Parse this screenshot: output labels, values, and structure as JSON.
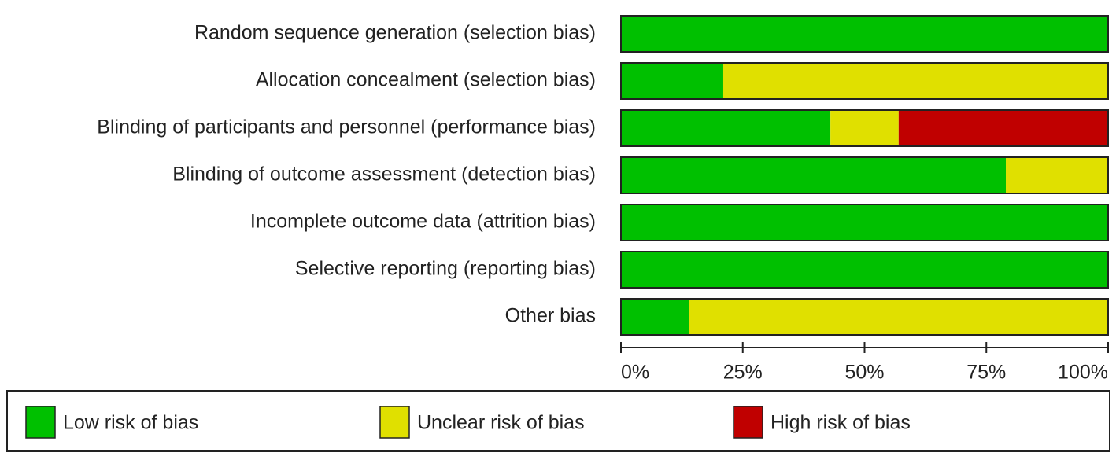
{
  "chart_data": {
    "type": "stacked-bar-horizontal",
    "categories": [
      "Random sequence generation (selection bias)",
      "Allocation concealment (selection bias)",
      "Blinding of participants and personnel (performance bias)",
      "Blinding of outcome assessment (detection bias)",
      "Incomplete outcome data (attrition bias)",
      "Selective reporting (reporting bias)",
      "Other bias"
    ],
    "series": [
      {
        "name": "Low risk of bias",
        "color": "#00c000",
        "values": [
          100,
          21,
          43,
          79,
          100,
          100,
          14
        ]
      },
      {
        "name": "Unclear risk of bias",
        "color": "#e0e000",
        "values": [
          0,
          79,
          14,
          21,
          0,
          0,
          86
        ]
      },
      {
        "name": "High risk of bias",
        "color": "#c00000",
        "values": [
          0,
          0,
          43,
          0,
          0,
          0,
          0
        ]
      }
    ],
    "xlim": [
      0,
      100
    ],
    "xticks": [
      {
        "value": 0,
        "label": "0%"
      },
      {
        "value": 25,
        "label": "25%"
      },
      {
        "value": 50,
        "label": "50%"
      },
      {
        "value": 75,
        "label": "75%"
      },
      {
        "value": 100,
        "label": "100%"
      }
    ],
    "legend": "bottom"
  }
}
